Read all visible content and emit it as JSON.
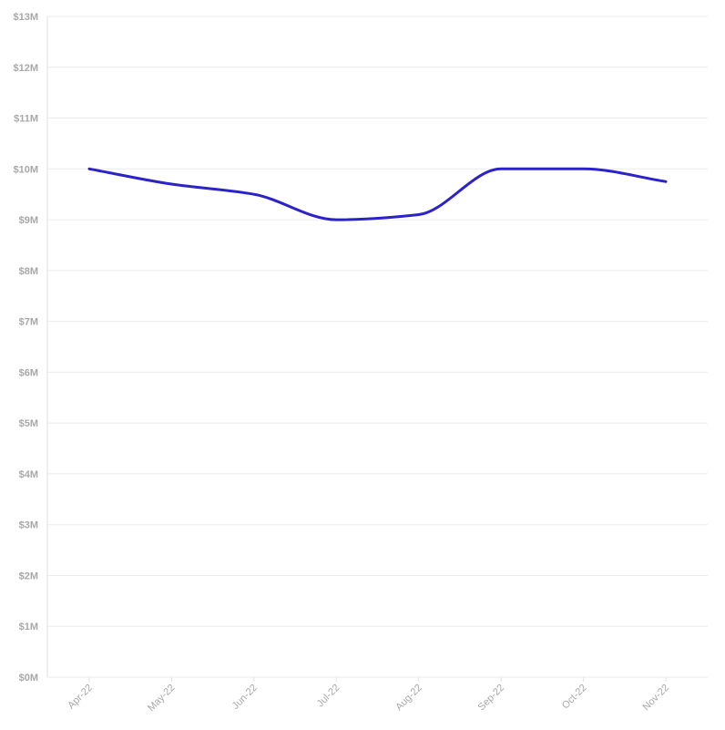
{
  "chart_data": {
    "type": "line",
    "title": "",
    "xlabel": "",
    "ylabel": "",
    "categories": [
      "Apr-22",
      "May-22",
      "Jun-22",
      "Jul-22",
      "Aug-22",
      "Sep-22",
      "Oct-22",
      "Nov-22"
    ],
    "series": [
      {
        "values": [
          10.0,
          9.7,
          9.5,
          9.0,
          9.1,
          10.0,
          10.0,
          9.75
        ],
        "color": "#2b22c9"
      }
    ],
    "ylim": [
      0,
      13
    ],
    "yticks": [
      0,
      1,
      2,
      3,
      4,
      5,
      6,
      7,
      8,
      9,
      10,
      11,
      12,
      13
    ],
    "ytick_labels": [
      "$0M",
      "$1M",
      "$2M",
      "$3M",
      "$4M",
      "$5M",
      "$6M",
      "$7M",
      "$8M",
      "$9M",
      "$10M",
      "$11M",
      "$12M",
      "$13M"
    ],
    "grid": true,
    "legend": "none",
    "smooth": true
  }
}
